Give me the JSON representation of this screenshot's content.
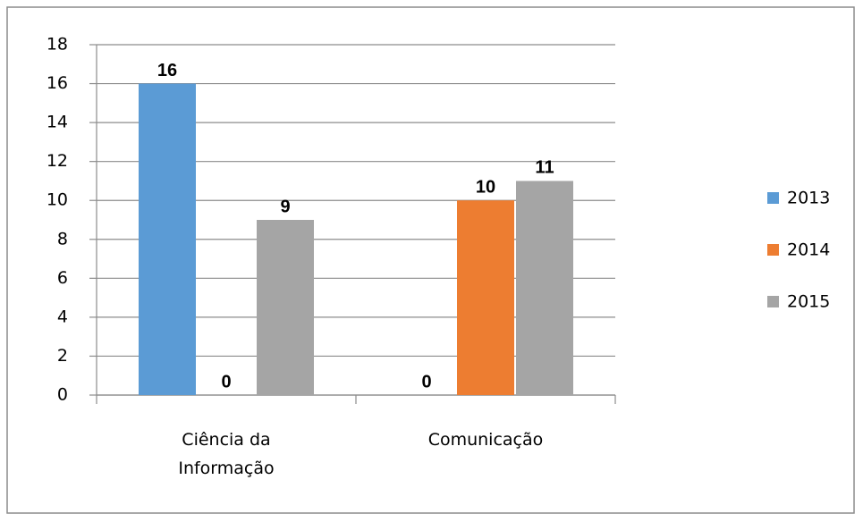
{
  "chart_data": {
    "type": "bar",
    "categories": [
      "Ciência da Informação",
      "Comunicação"
    ],
    "series": [
      {
        "name": "2013",
        "color": "#5b9bd5",
        "values": [
          16,
          0
        ]
      },
      {
        "name": "2014",
        "color": "#ed7d31",
        "values": [
          0,
          10
        ]
      },
      {
        "name": "2015",
        "color": "#a5a5a5",
        "values": [
          9,
          11
        ]
      }
    ],
    "ylim": [
      0,
      18
    ],
    "yticks": [
      0,
      2,
      4,
      6,
      8,
      10,
      12,
      14,
      16,
      18
    ],
    "grid": true,
    "legend": "right"
  }
}
